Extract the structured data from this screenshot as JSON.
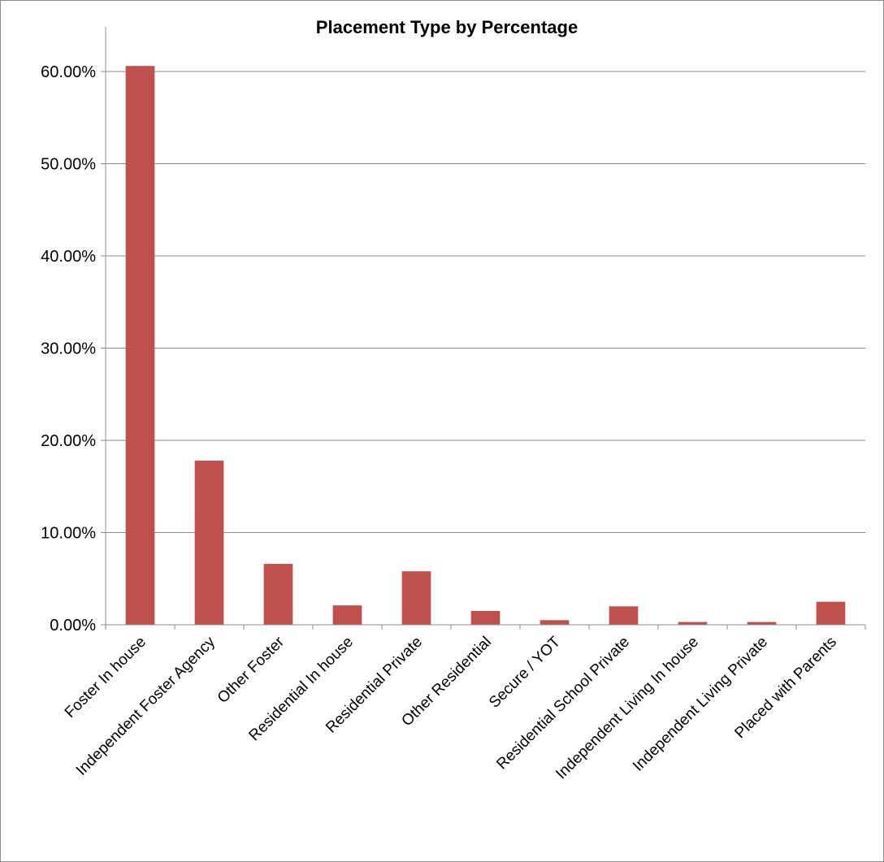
{
  "chart_data": {
    "type": "bar",
    "title": "Placement Type by Percentage",
    "xlabel": "",
    "ylabel": "",
    "ylim": [
      0,
      0.6
    ],
    "yticks": [
      0,
      0.1,
      0.2,
      0.3,
      0.4,
      0.5,
      0.6
    ],
    "ytick_labels": [
      "0.00%",
      "10.00%",
      "20.00%",
      "30.00%",
      "40.00%",
      "50.00%",
      "60.00%"
    ],
    "grid": true,
    "legend": "none",
    "bar_color": "#c0504d",
    "categories": [
      "Foster In house",
      "Independent Foster Agency",
      "Other Foster",
      "Residential In house",
      "Residential Private",
      "Other Residential",
      "Secure / YOT",
      "Residential School Private",
      "Independent Living In house",
      "Independent Living Private",
      "Placed with Parents"
    ],
    "values": [
      0.606,
      0.178,
      0.066,
      0.021,
      0.058,
      0.015,
      0.005,
      0.02,
      0.003,
      0.003,
      0.025
    ]
  }
}
